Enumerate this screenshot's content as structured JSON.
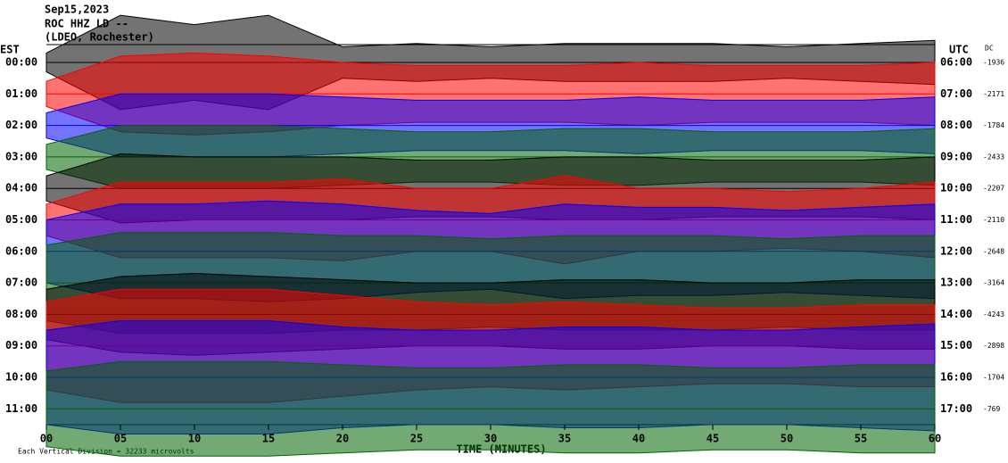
{
  "chart_data": {
    "type": "helicorder",
    "title_lines": [
      "Sep15,2023",
      "ROC HHZ LD --",
      "(LDEO, Rochester)"
    ],
    "left_axis_label": "EST",
    "right_axis_label": "UTC",
    "dc_label": "DC",
    "xlabel": "TIME (MINUTES)",
    "footnote": "Each Vertical Division = 32233 microvolts",
    "xlim": [
      0,
      60
    ],
    "xticks": [
      {
        "value": 0,
        "label": "00"
      },
      {
        "value": 5,
        "label": "05"
      },
      {
        "value": 10,
        "label": "10"
      },
      {
        "value": 15,
        "label": "15"
      },
      {
        "value": 20,
        "label": "20"
      },
      {
        "value": 25,
        "label": "25"
      },
      {
        "value": 30,
        "label": "30"
      },
      {
        "value": 35,
        "label": "35"
      },
      {
        "value": 40,
        "label": "40"
      },
      {
        "value": 45,
        "label": "45"
      },
      {
        "value": 50,
        "label": "50"
      },
      {
        "value": 55,
        "label": "55"
      },
      {
        "value": 60,
        "label": "60"
      }
    ],
    "x": [
      0,
      5,
      10,
      15,
      20,
      25,
      30,
      35,
      40,
      45,
      50,
      55,
      60
    ],
    "rows": [
      {
        "est": "00:00",
        "utc": "06:00",
        "dc": -1936,
        "color": "#000000",
        "values": [
          0.3,
          1.5,
          1.2,
          1.5,
          0.5,
          0.6,
          0.5,
          0.6,
          0.6,
          0.6,
          0.5,
          0.6,
          0.7
        ]
      },
      {
        "est": "01:00",
        "utc": "07:00",
        "dc": -2171,
        "color": "#ff0000",
        "values": [
          0.4,
          1.2,
          1.3,
          1.2,
          1.0,
          0.9,
          0.9,
          0.9,
          1.0,
          0.9,
          0.9,
          0.9,
          1.0
        ]
      },
      {
        "est": "02:00",
        "utc": "08:00",
        "dc": -1784,
        "color": "#0000ff",
        "values": [
          0.4,
          1.0,
          1.0,
          1.0,
          0.9,
          0.8,
          0.8,
          0.8,
          0.9,
          0.8,
          0.8,
          0.8,
          0.9
        ]
      },
      {
        "est": "03:00",
        "utc": "09:00",
        "dc": -2433,
        "color": "#006400",
        "values": [
          0.4,
          1.0,
          1.0,
          1.0,
          0.9,
          0.8,
          0.8,
          0.9,
          0.9,
          0.8,
          0.8,
          0.8,
          0.9
        ]
      },
      {
        "est": "04:00",
        "utc": "10:00",
        "dc": -2207,
        "color": "#000000",
        "values": [
          0.4,
          1.1,
          1.0,
          1.0,
          1.0,
          0.9,
          0.9,
          1.0,
          1.0,
          0.9,
          0.9,
          0.9,
          1.0
        ]
      },
      {
        "est": "05:00",
        "utc": "11:00",
        "dc": -2110,
        "color": "#ff0000",
        "values": [
          0.5,
          1.2,
          1.2,
          1.2,
          1.3,
          1.0,
          1.0,
          1.4,
          1.0,
          1.0,
          0.9,
          1.0,
          1.2
        ]
      },
      {
        "est": "06:00",
        "utc": "12:00",
        "dc": -2648,
        "color": "#0000ff",
        "values": [
          1.0,
          1.5,
          1.5,
          1.6,
          1.5,
          1.3,
          1.2,
          1.5,
          1.4,
          1.4,
          1.3,
          1.4,
          1.5
        ]
      },
      {
        "est": "07:00",
        "utc": "13:00",
        "dc": -3164,
        "color": "#006400",
        "values": [
          1.2,
          1.6,
          1.6,
          1.6,
          1.5,
          1.5,
          1.4,
          1.5,
          1.5,
          1.5,
          1.4,
          1.5,
          1.5
        ]
      },
      {
        "est": "08:00",
        "utc": "14:00",
        "dc": -4243,
        "color": "#000000",
        "values": [
          0.8,
          1.2,
          1.3,
          1.2,
          1.1,
          1.0,
          1.0,
          1.1,
          1.1,
          1.0,
          1.0,
          1.1,
          1.1
        ]
      },
      {
        "est": "09:00",
        "utc": "15:00",
        "dc": -2898,
        "color": "#ff0000",
        "values": [
          1.4,
          1.8,
          1.8,
          1.8,
          1.6,
          1.4,
          1.3,
          1.4,
          1.3,
          1.2,
          1.2,
          1.3,
          1.3
        ]
      },
      {
        "est": "10:00",
        "utc": "16:00",
        "dc": -1704,
        "color": "#0000ff",
        "values": [
          1.5,
          1.8,
          1.8,
          1.8,
          1.6,
          1.5,
          1.5,
          1.6,
          1.6,
          1.5,
          1.5,
          1.6,
          1.7
        ]
      },
      {
        "est": "11:00",
        "utc": "17:00",
        "dc": -769,
        "color": "#006400",
        "values": [
          1.2,
          1.5,
          1.5,
          1.5,
          1.4,
          1.3,
          1.3,
          1.4,
          1.4,
          1.3,
          1.3,
          1.4,
          1.4
        ]
      }
    ]
  }
}
